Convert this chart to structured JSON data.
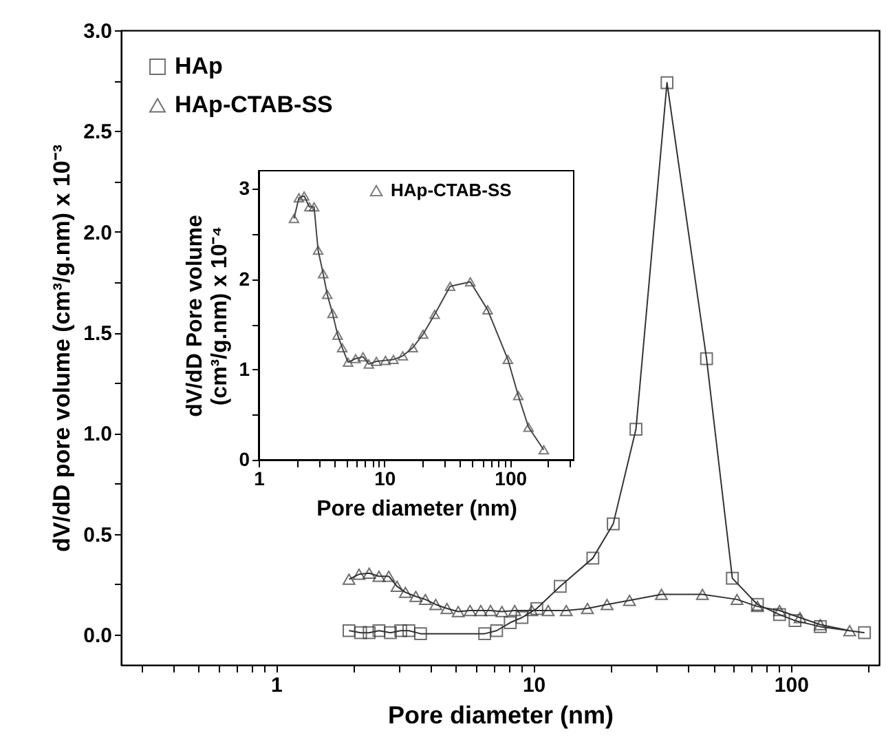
{
  "chart_data": [
    {
      "type": "line",
      "xlabel": "Pore diameter (nm)",
      "ylabel": "dV/dD pore volume  (cm³/g.nm) x 10⁻³",
      "log": "x",
      "grid": false,
      "legend": "top left",
      "xlim": [
        0.25,
        220
      ],
      "ylim": [
        -0.15,
        3.0
      ],
      "xticks": [
        {
          "value": 0.3,
          "label": null
        },
        {
          "value": 0.4,
          "label": null
        },
        {
          "value": 0.5,
          "label": null
        },
        {
          "value": 0.6,
          "label": null
        },
        {
          "value": 0.7,
          "label": null
        },
        {
          "value": 0.8,
          "label": null
        },
        {
          "value": 0.9,
          "label": null
        },
        1,
        {
          "value": 2,
          "label": null
        },
        {
          "value": 3,
          "label": null
        },
        {
          "value": 4,
          "label": null
        },
        {
          "value": 5,
          "label": null
        },
        {
          "value": 6,
          "label": null
        },
        {
          "value": 7,
          "label": null
        },
        {
          "value": 8,
          "label": null
        },
        {
          "value": 9,
          "label": null
        },
        10,
        {
          "value": 20,
          "label": null
        },
        {
          "value": 30,
          "label": null
        },
        {
          "value": 40,
          "label": null
        },
        {
          "value": 50,
          "label": null
        },
        {
          "value": 60,
          "label": null
        },
        {
          "value": 70,
          "label": null
        },
        {
          "value": 80,
          "label": null
        },
        {
          "value": 90,
          "label": null
        },
        100,
        {
          "value": 200,
          "label": null
        }
      ],
      "yticks": [
        {
          "value": 0,
          "label": "0.0"
        },
        {
          "value": 0.25,
          "label": null
        },
        0.5,
        {
          "value": 0.75,
          "label": null
        },
        {
          "value": 1,
          "label": "1.0"
        },
        {
          "value": 1.25,
          "label": null
        },
        1.5,
        {
          "value": 1.75,
          "label": null
        },
        {
          "value": 2,
          "label": "2.0"
        },
        {
          "value": 2.25,
          "label": null
        },
        2.5,
        {
          "value": 2.75,
          "label": null
        },
        {
          "value": 3,
          "label": "3.0"
        }
      ],
      "series": [
        {
          "name": "HAp",
          "color": "#333333",
          "marker": "square",
          "line_style": "solid",
          "x": [
            1.92,
            2.13,
            2.3,
            2.51,
            2.78,
            3.05,
            3.28,
            3.64,
            6.46,
            7.19,
            8.12,
            9.02,
            10.3,
            12.7,
            17.0,
            20.4,
            25.0,
            33.0,
            47.0,
            59.2,
            74.1,
            90.3,
            103.7,
            130,
            193
          ],
          "values": [
            0.02,
            0.01,
            0.01,
            0.02,
            0.01,
            0.02,
            0.02,
            0.005,
            0.005,
            0.02,
            0.06,
            0.085,
            0.13,
            0.24,
            0.38,
            0.55,
            1.02,
            2.74,
            1.37,
            0.28,
            0.15,
            0.1,
            0.07,
            0.04,
            0.01
          ]
        },
        {
          "name": "HAp-CTAB-SS",
          "color": "#333333",
          "marker": "triangle",
          "line_style": "solid",
          "x": [
            1.92,
            2.1,
            2.3,
            2.51,
            2.74,
            2.95,
            3.18,
            3.49,
            3.8,
            4.17,
            4.61,
            5.1,
            5.67,
            6.24,
            6.81,
            7.54,
            8.45,
            9.84,
            11.4,
            13.4,
            16.2,
            19.3,
            23.6,
            31.4,
            45.3,
            61.7,
            74.1,
            90.3,
            108.4,
            130,
            169
          ],
          "values": [
            0.275,
            0.3,
            0.305,
            0.29,
            0.29,
            0.24,
            0.21,
            0.19,
            0.175,
            0.15,
            0.13,
            0.115,
            0.12,
            0.12,
            0.12,
            0.115,
            0.12,
            0.12,
            0.12,
            0.12,
            0.13,
            0.15,
            0.17,
            0.2,
            0.2,
            0.175,
            0.14,
            0.12,
            0.085,
            0.05,
            0.02
          ]
        }
      ]
    },
    {
      "type": "line",
      "xlabel": "Pore diameter (nm)",
      "ylabel": "dV/dD Pore volume\n(cm³/g.nm) x 10⁻⁴",
      "log": "x",
      "grid": false,
      "legend": "top right",
      "xlim": [
        1,
        320
      ],
      "ylim": [
        0,
        3.2
      ],
      "xticks": [
        1,
        {
          "value": 2,
          "label": null
        },
        {
          "value": 3,
          "label": null
        },
        {
          "value": 4,
          "label": null
        },
        {
          "value": 5,
          "label": null
        },
        {
          "value": 6,
          "label": null
        },
        {
          "value": 7,
          "label": null
        },
        {
          "value": 8,
          "label": null
        },
        {
          "value": 9,
          "label": null
        },
        10,
        {
          "value": 20,
          "label": null
        },
        {
          "value": 30,
          "label": null
        },
        {
          "value": 40,
          "label": null
        },
        {
          "value": 50,
          "label": null
        },
        {
          "value": 60,
          "label": null
        },
        {
          "value": 70,
          "label": null
        },
        {
          "value": 80,
          "label": null
        },
        {
          "value": 90,
          "label": null
        },
        100,
        {
          "value": 200,
          "label": null
        },
        {
          "value": 300,
          "label": null
        }
      ],
      "yticks": [
        0,
        {
          "value": 0.5,
          "label": null
        },
        1,
        {
          "value": 1.5,
          "label": null
        },
        2,
        {
          "value": 2.5,
          "label": null
        },
        3
      ],
      "series": [
        {
          "name": "HAp-CTAB-SS",
          "color": "#444444",
          "marker": "triangle",
          "line_style": "solid",
          "x": [
            1.91,
            2.09,
            2.3,
            2.53,
            2.76,
            2.97,
            3.26,
            3.51,
            3.87,
            4.25,
            4.62,
            5.14,
            5.9,
            6.76,
            7.52,
            8.63,
            10.2,
            11.8,
            14.0,
            16.8,
            20.3,
            25.1,
            33.3,
            48.2,
            66.2,
            95.9,
            116,
            140,
            185
          ],
          "values": [
            2.67,
            2.9,
            2.92,
            2.8,
            2.8,
            2.32,
            2.06,
            1.83,
            1.62,
            1.38,
            1.24,
            1.08,
            1.12,
            1.14,
            1.06,
            1.09,
            1.1,
            1.11,
            1.15,
            1.24,
            1.39,
            1.61,
            1.92,
            1.97,
            1.66,
            1.11,
            0.71,
            0.36,
            0.11
          ]
        }
      ]
    }
  ]
}
